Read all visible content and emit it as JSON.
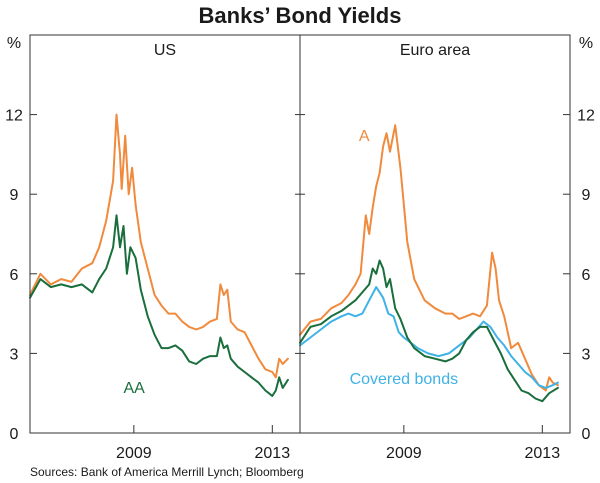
{
  "chart_data": {
    "type": "line",
    "title": "Banks’ Bond Yields",
    "unit_left": "%",
    "unit_right": "%",
    "ylim": [
      0,
      15
    ],
    "yticks": [
      0,
      3,
      6,
      9,
      12
    ],
    "xlim": [
      2006.0,
      2013.8
    ],
    "xticks": [
      2009,
      2013
    ],
    "xtick_labels": [
      "2009",
      "2013"
    ],
    "source": "Sources: Bank of America Merrill Lynch; Bloomberg",
    "colors": {
      "orange": "#f08a3c",
      "green": "#1a6e3c",
      "blue": "#3fb2e6"
    },
    "panels": [
      {
        "title": "US",
        "series": [
          {
            "name": "A",
            "label": "",
            "color": "#f08a3c",
            "x": [
              2006.0,
              2006.3,
              2006.6,
              2006.9,
              2007.2,
              2007.5,
              2007.8,
              2008.0,
              2008.2,
              2008.4,
              2008.5,
              2008.6,
              2008.65,
              2008.75,
              2008.85,
              2008.95,
              2009.05,
              2009.2,
              2009.4,
              2009.6,
              2009.8,
              2010.0,
              2010.2,
              2010.4,
              2010.6,
              2010.8,
              2011.0,
              2011.2,
              2011.4,
              2011.5,
              2011.6,
              2011.7,
              2011.8,
              2012.0,
              2012.2,
              2012.4,
              2012.6,
              2012.8,
              2013.0,
              2013.1,
              2013.2,
              2013.3,
              2013.45
            ],
            "y": [
              5.2,
              6.0,
              5.6,
              5.8,
              5.7,
              6.2,
              6.4,
              7.0,
              8.0,
              9.5,
              12.0,
              10.5,
              9.2,
              11.2,
              9.0,
              10.0,
              8.6,
              7.2,
              6.2,
              5.2,
              4.8,
              4.5,
              4.5,
              4.2,
              4.0,
              3.9,
              4.0,
              4.2,
              4.3,
              5.6,
              5.2,
              5.4,
              4.2,
              3.9,
              3.8,
              3.3,
              2.8,
              2.4,
              2.3,
              2.1,
              2.8,
              2.6,
              2.8
            ]
          },
          {
            "name": "AA",
            "label": "AA",
            "color": "#1a6e3c",
            "x": [
              2006.0,
              2006.3,
              2006.6,
              2006.9,
              2007.2,
              2007.5,
              2007.8,
              2008.0,
              2008.2,
              2008.4,
              2008.5,
              2008.6,
              2008.7,
              2008.8,
              2008.9,
              2009.05,
              2009.2,
              2009.4,
              2009.6,
              2009.8,
              2010.0,
              2010.2,
              2010.4,
              2010.6,
              2010.8,
              2011.0,
              2011.2,
              2011.4,
              2011.5,
              2011.6,
              2011.7,
              2011.8,
              2012.0,
              2012.2,
              2012.4,
              2012.6,
              2012.8,
              2013.0,
              2013.1,
              2013.2,
              2013.3,
              2013.45
            ],
            "y": [
              5.1,
              5.8,
              5.5,
              5.6,
              5.5,
              5.6,
              5.3,
              5.8,
              6.2,
              7.0,
              8.2,
              7.0,
              7.8,
              6.0,
              7.0,
              6.6,
              5.4,
              4.4,
              3.7,
              3.2,
              3.2,
              3.3,
              3.1,
              2.7,
              2.6,
              2.8,
              2.9,
              2.9,
              3.6,
              3.2,
              3.3,
              2.8,
              2.5,
              2.3,
              2.1,
              1.9,
              1.6,
              1.4,
              1.6,
              2.1,
              1.7,
              2.0
            ]
          }
        ]
      },
      {
        "title": "Euro area",
        "series": [
          {
            "name": "A",
            "label": "A",
            "color": "#f08a3c",
            "x": [
              2006.0,
              2006.3,
              2006.6,
              2006.9,
              2007.2,
              2007.4,
              2007.6,
              2007.75,
              2007.9,
              2008.0,
              2008.1,
              2008.2,
              2008.3,
              2008.4,
              2008.5,
              2008.6,
              2008.75,
              2008.9,
              2009.1,
              2009.3,
              2009.6,
              2009.9,
              2010.2,
              2010.4,
              2010.6,
              2010.8,
              2011.0,
              2011.2,
              2011.4,
              2011.55,
              2011.65,
              2011.75,
              2011.9,
              2012.1,
              2012.3,
              2012.5,
              2012.7,
              2012.9,
              2013.1,
              2013.2,
              2013.3,
              2013.45
            ],
            "y": [
              3.7,
              4.2,
              4.3,
              4.7,
              4.9,
              5.2,
              5.6,
              6.0,
              8.2,
              7.5,
              8.5,
              9.3,
              9.8,
              10.8,
              11.3,
              10.6,
              11.6,
              10.0,
              7.2,
              5.8,
              5.0,
              4.7,
              4.5,
              4.5,
              4.3,
              4.4,
              4.5,
              4.4,
              4.8,
              6.8,
              6.2,
              5.0,
              4.4,
              3.2,
              3.4,
              2.8,
              2.2,
              1.8,
              1.6,
              2.1,
              1.9,
              1.8
            ]
          },
          {
            "name": "AA",
            "label": "",
            "color": "#1a6e3c",
            "x": [
              2006.0,
              2006.3,
              2006.6,
              2006.9,
              2007.2,
              2007.4,
              2007.6,
              2007.8,
              2008.0,
              2008.1,
              2008.2,
              2008.3,
              2008.4,
              2008.5,
              2008.6,
              2008.75,
              2008.9,
              2009.1,
              2009.3,
              2009.6,
              2009.9,
              2010.2,
              2010.4,
              2010.6,
              2010.8,
              2011.0,
              2011.2,
              2011.4,
              2011.6,
              2011.8,
              2012.0,
              2012.2,
              2012.4,
              2012.6,
              2012.8,
              2013.0,
              2013.2,
              2013.45
            ],
            "y": [
              3.4,
              4.0,
              4.1,
              4.4,
              4.6,
              4.8,
              5.0,
              5.3,
              5.6,
              6.2,
              6.0,
              6.5,
              6.2,
              5.5,
              5.8,
              4.7,
              4.3,
              3.6,
              3.2,
              2.9,
              2.8,
              2.7,
              2.8,
              3.0,
              3.5,
              3.8,
              4.0,
              4.0,
              3.5,
              3.0,
              2.4,
              2.0,
              1.6,
              1.5,
              1.3,
              1.2,
              1.5,
              1.7
            ]
          },
          {
            "name": "Covered bonds",
            "label": "Covered bonds",
            "color": "#3fb2e6",
            "x": [
              2006.0,
              2006.3,
              2006.6,
              2006.9,
              2007.2,
              2007.4,
              2007.6,
              2007.8,
              2008.0,
              2008.2,
              2008.4,
              2008.55,
              2008.7,
              2008.85,
              2009.0,
              2009.2,
              2009.4,
              2009.7,
              2010.0,
              2010.3,
              2010.6,
              2010.9,
              2011.1,
              2011.3,
              2011.5,
              2011.7,
              2011.9,
              2012.1,
              2012.3,
              2012.5,
              2012.7,
              2012.9,
              2013.1,
              2013.3,
              2013.45
            ],
            "y": [
              3.3,
              3.6,
              3.9,
              4.2,
              4.4,
              4.5,
              4.4,
              4.5,
              5.0,
              5.5,
              5.1,
              4.5,
              4.4,
              3.8,
              3.6,
              3.4,
              3.2,
              3.0,
              2.9,
              3.0,
              3.3,
              3.6,
              3.9,
              4.2,
              4.0,
              3.6,
              3.3,
              2.9,
              2.6,
              2.3,
              2.1,
              1.8,
              1.7,
              1.8,
              1.9
            ]
          }
        ]
      }
    ]
  }
}
